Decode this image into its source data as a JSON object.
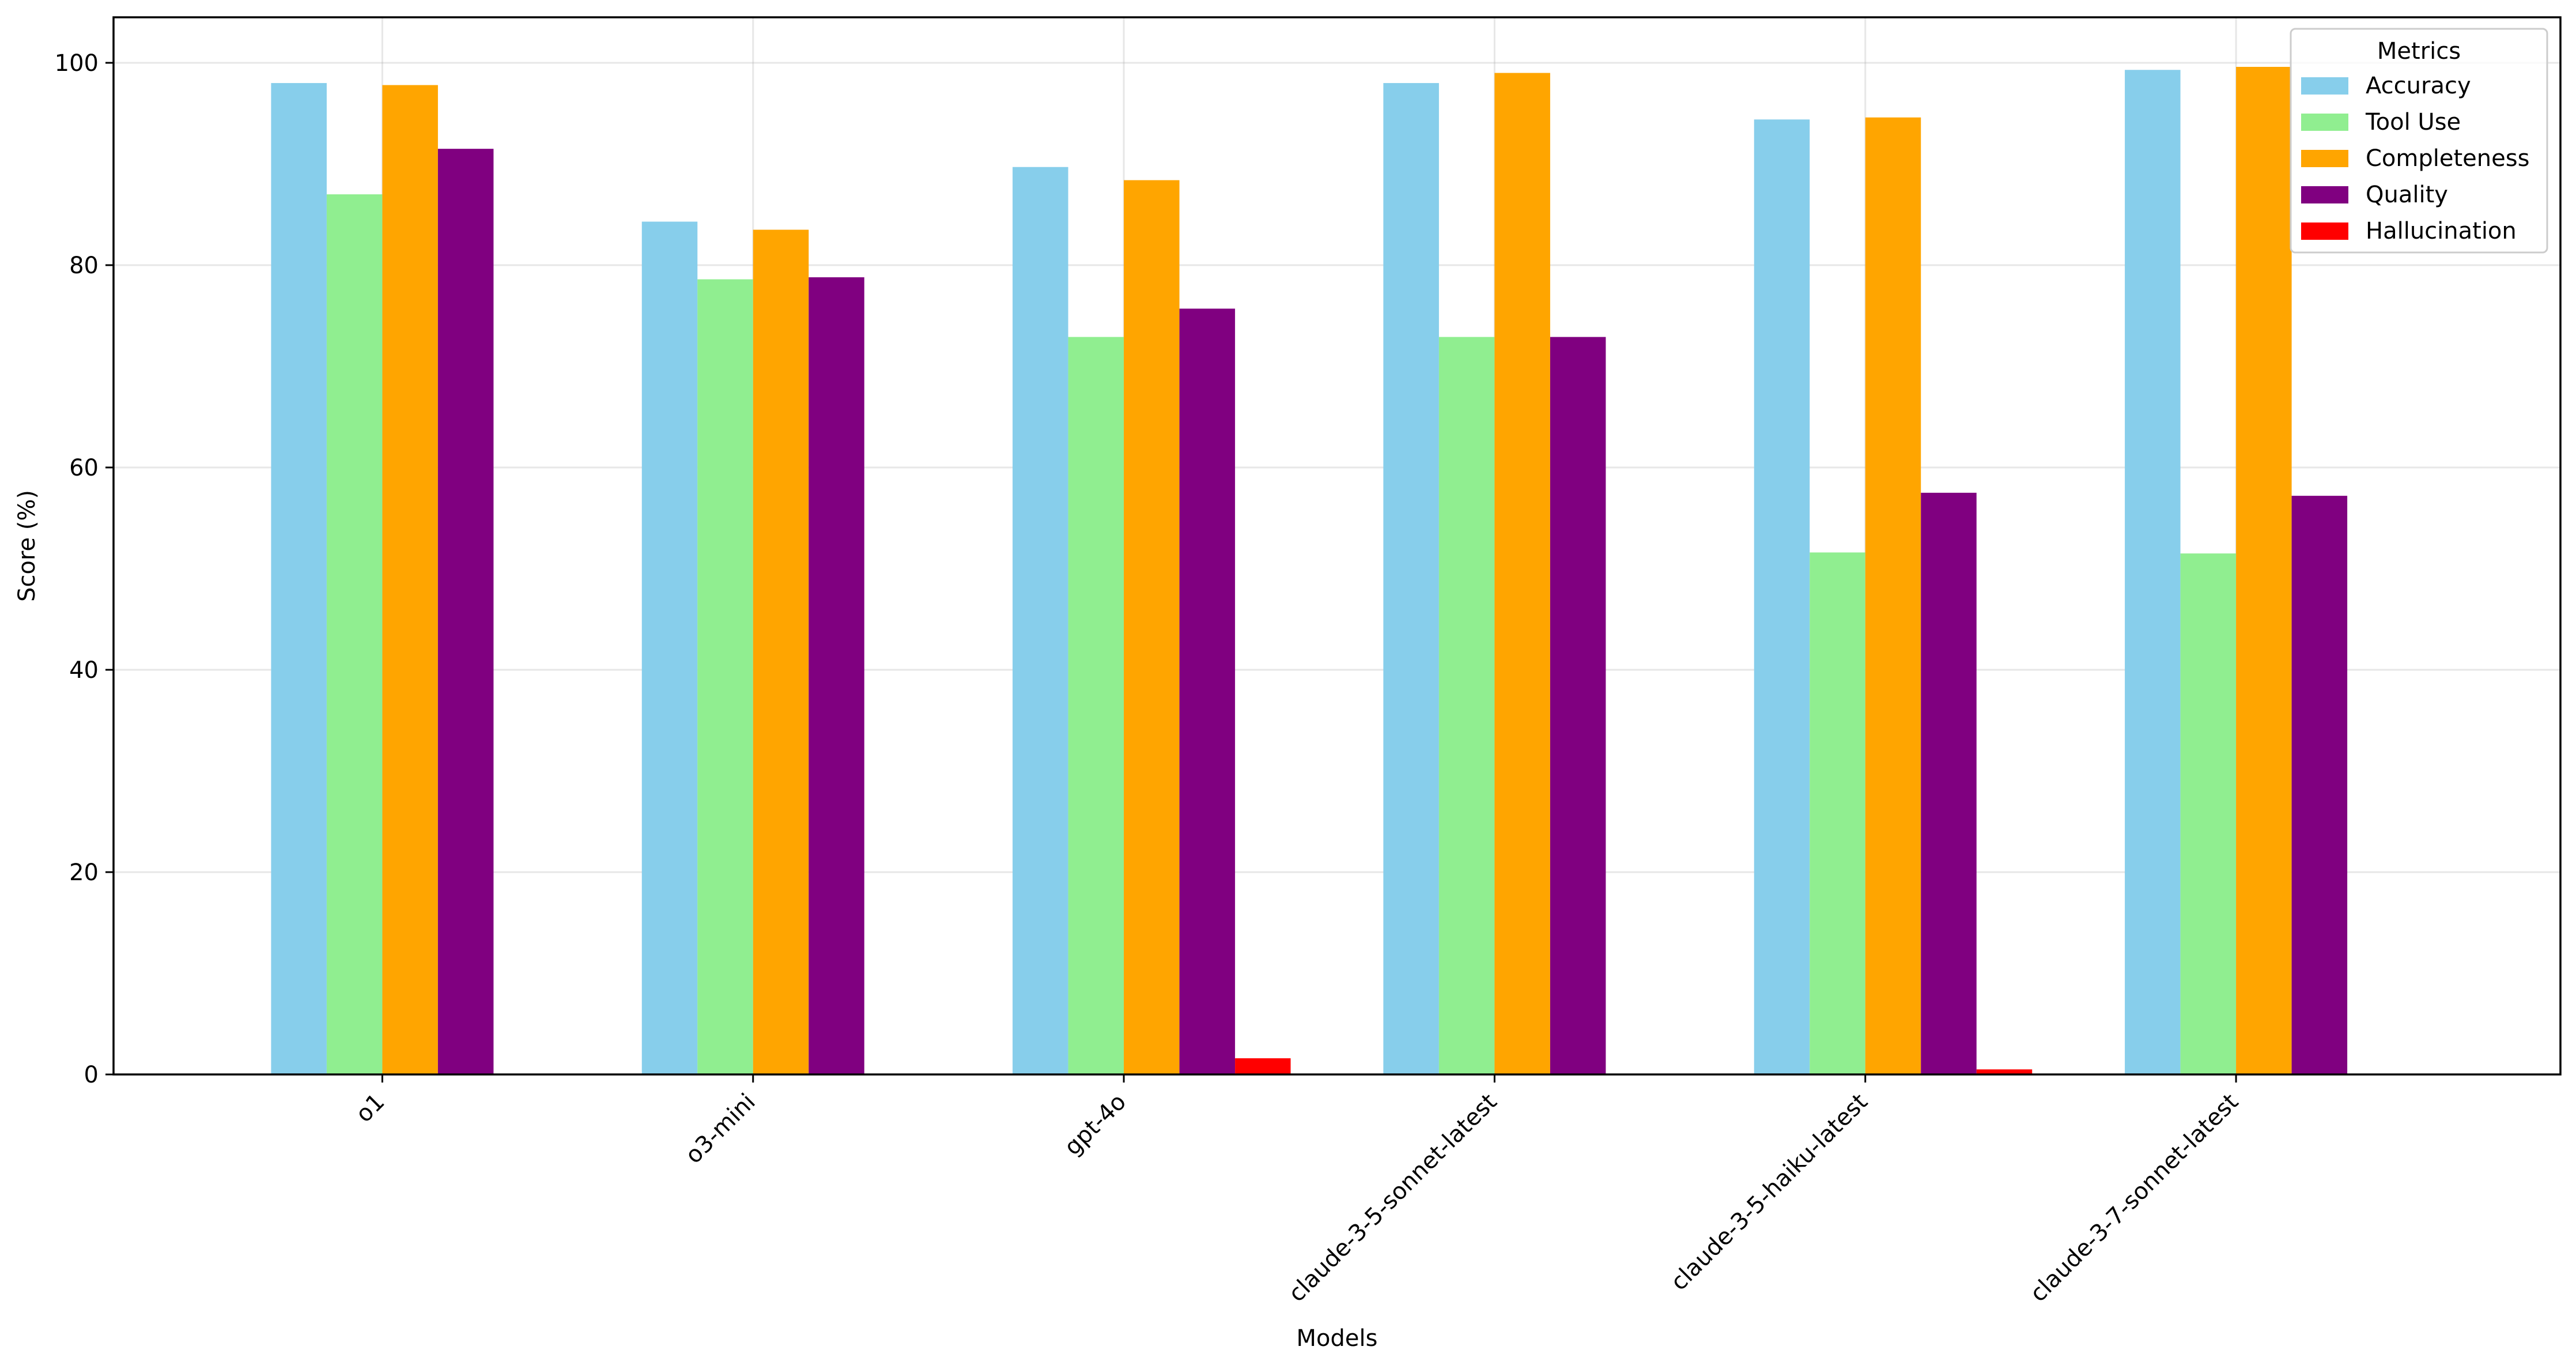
{
  "chart_data": {
    "type": "bar",
    "title": "",
    "xlabel": "Models",
    "ylabel": "Score (%)",
    "ylim": [
      0,
      104.5
    ],
    "yticks": [
      0,
      20,
      40,
      60,
      80,
      100
    ],
    "grid": true,
    "legend": {
      "title": "Metrics",
      "placement": "top-right"
    },
    "categories": [
      "o1",
      "o3-mini",
      "gpt-4o",
      "claude-3-5-sonnet-latest",
      "claude-3-5-haiku-latest",
      "claude-3-7-sonnet-latest"
    ],
    "series": [
      {
        "name": "Accuracy",
        "color": "#87ceeb",
        "values": [
          98.0,
          84.3,
          89.7,
          98.0,
          94.4,
          99.3
        ]
      },
      {
        "name": "Tool Use",
        "color": "#90ee90",
        "values": [
          87.0,
          78.6,
          72.9,
          72.9,
          51.6,
          51.5
        ]
      },
      {
        "name": "Completeness",
        "color": "#ffa500",
        "values": [
          97.8,
          83.5,
          88.4,
          99.0,
          94.6,
          99.6
        ]
      },
      {
        "name": "Quality",
        "color": "#800080",
        "values": [
          91.5,
          78.8,
          75.7,
          72.9,
          57.5,
          57.2
        ]
      },
      {
        "name": "Hallucination",
        "color": "#ff0000",
        "values": [
          0,
          0,
          1.6,
          0,
          0.5,
          0
        ]
      }
    ]
  }
}
